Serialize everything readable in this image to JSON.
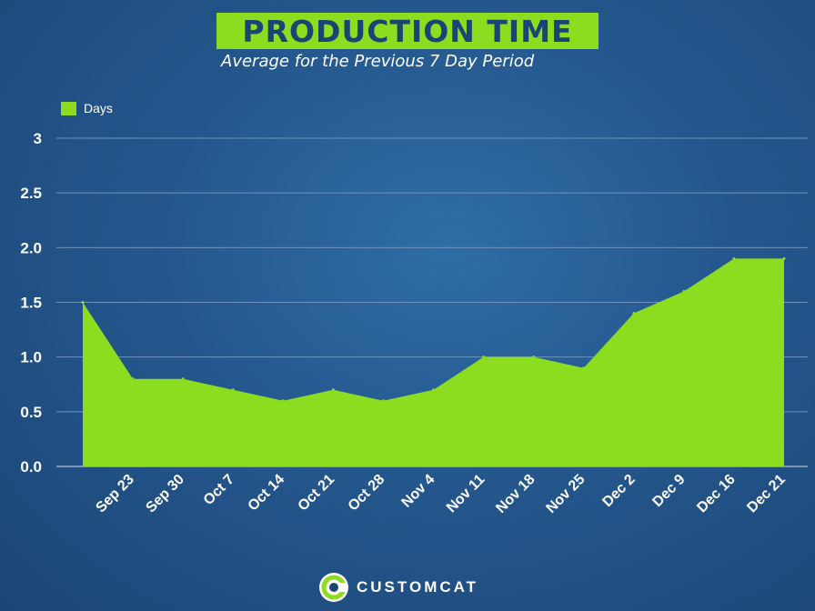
{
  "title": "PRODUCTION TIME",
  "subtitle": "Average for the Previous 7 Day Period",
  "brand": {
    "name": "CUSTOMCAT",
    "logo_letter": "C"
  },
  "colors": {
    "fill": "#8cdc1f",
    "background": "#24578d",
    "title_text": "#1b4474",
    "grid": "#6f93bd"
  },
  "chart_data": {
    "type": "area",
    "title": "PRODUCTION TIME",
    "subtitle": "Average for the Previous 7 Day Period",
    "legend": [
      {
        "label": "Days",
        "position": "top-left"
      }
    ],
    "y_tick_labels": [
      "0.0",
      "0.5",
      "1.0",
      "1.5",
      "2.0",
      "2.5",
      "3"
    ],
    "ylim": [
      0,
      3
    ],
    "grid": true,
    "x_tick_labels": [
      "Sep 23",
      "Sep 30",
      "Oct 7",
      "Oct 14",
      "Oct 21",
      "Oct 28",
      "Nov 4",
      "Nov 11",
      "Nov 18",
      "Nov 25",
      "Dec 2",
      "Dec 9",
      "Dec 16",
      "Dec 21"
    ],
    "series": [
      {
        "name": "Days",
        "values": [
          1.5,
          0.8,
          0.8,
          0.7,
          0.6,
          0.7,
          0.6,
          0.7,
          1.0,
          1.0,
          0.9,
          1.4,
          1.6,
          1.9,
          1.9
        ]
      }
    ]
  }
}
